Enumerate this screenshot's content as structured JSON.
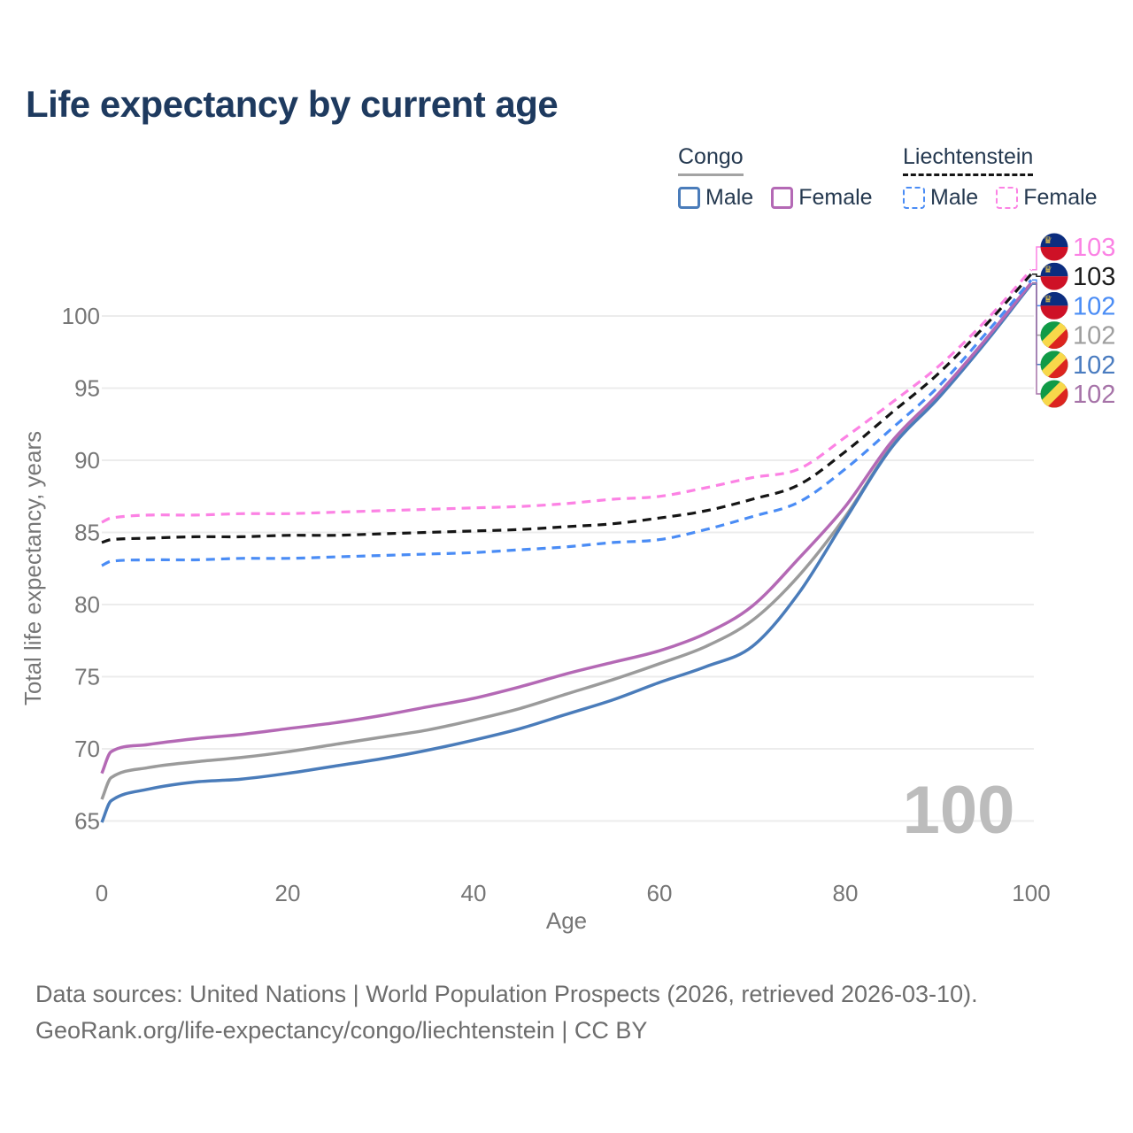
{
  "title": "Life expectancy by current age",
  "legend": {
    "groups": [
      {
        "label": "Congo",
        "underline": {
          "style": "solid",
          "color": "#a3a3a3"
        },
        "items": [
          {
            "label": "Male",
            "color": "#4a7cba",
            "dashed": false
          },
          {
            "label": "Female",
            "color": "#b469b5",
            "dashed": false
          }
        ]
      },
      {
        "label": "Liechtenstein",
        "underline": {
          "style": "dashed",
          "color": "#161616"
        },
        "items": [
          {
            "label": "Male",
            "color": "#4a8cf5",
            "dashed": true
          },
          {
            "label": "Female",
            "color": "#fc82e4",
            "dashed": true
          }
        ]
      }
    ]
  },
  "chart_data": {
    "type": "line",
    "title": "Life expectancy by current age",
    "xlabel": "Age",
    "ylabel": "Total life expectancy, years",
    "xlim": [
      0,
      100
    ],
    "ylim": [
      64,
      104
    ],
    "xticks": [
      0,
      20,
      40,
      60,
      80,
      100
    ],
    "yticks": [
      65,
      70,
      75,
      80,
      85,
      90,
      95,
      100
    ],
    "grid": "horizontal-only",
    "legend_position": "top-right",
    "watermark": "100",
    "x": [
      0,
      1,
      5,
      10,
      15,
      20,
      25,
      30,
      35,
      40,
      45,
      50,
      55,
      60,
      65,
      70,
      75,
      80,
      85,
      90,
      95,
      100
    ],
    "series": [
      {
        "key": "congo_both",
        "name": "Congo Both sexes",
        "color": "#9b9b9b",
        "dash": "solid",
        "values": [
          66.5,
          68.0,
          68.7,
          69.1,
          69.4,
          69.8,
          70.3,
          70.8,
          71.3,
          72.0,
          72.8,
          73.8,
          74.8,
          75.9,
          77.1,
          78.9,
          82.0,
          86.1,
          91.0,
          94.4,
          98.2,
          102.2
        ]
      },
      {
        "key": "congo_male",
        "name": "Congo Male",
        "color": "#4a7cba",
        "dash": "solid",
        "values": [
          64.9,
          66.4,
          67.2,
          67.7,
          67.9,
          68.3,
          68.8,
          69.3,
          69.9,
          70.6,
          71.4,
          72.4,
          73.4,
          74.6,
          75.7,
          77.1,
          80.8,
          85.9,
          90.9,
          94.3,
          98.1,
          102.2
        ]
      },
      {
        "key": "congo_female",
        "name": "Congo Female",
        "color": "#b469b5",
        "dash": "solid",
        "values": [
          68.3,
          69.8,
          70.3,
          70.7,
          71.0,
          71.4,
          71.8,
          72.3,
          72.9,
          73.5,
          74.3,
          75.2,
          76.0,
          76.8,
          78.0,
          79.9,
          83.2,
          86.8,
          91.3,
          94.6,
          98.3,
          102.3
        ]
      },
      {
        "key": "liech_male",
        "name": "Liechtenstein Male",
        "color": "#4a8cf5",
        "dash": "dashed",
        "values": [
          82.7,
          83.0,
          83.1,
          83.1,
          83.2,
          83.2,
          83.3,
          83.4,
          83.5,
          83.6,
          83.8,
          84.0,
          84.3,
          84.5,
          85.2,
          86.1,
          87.1,
          89.4,
          92.2,
          95.1,
          98.7,
          102.5
        ]
      },
      {
        "key": "liech_both",
        "name": "Liechtenstein Both sexes",
        "color": "#151515",
        "dash": "dashed",
        "values": [
          84.3,
          84.5,
          84.6,
          84.7,
          84.7,
          84.8,
          84.8,
          84.9,
          85.0,
          85.1,
          85.2,
          85.4,
          85.6,
          86.0,
          86.5,
          87.3,
          88.3,
          90.6,
          93.3,
          96.0,
          99.3,
          102.9
        ]
      },
      {
        "key": "liech_female",
        "name": "Liechtenstein Female",
        "color": "#fc82e4",
        "dash": "dashed",
        "values": [
          85.7,
          86.0,
          86.2,
          86.2,
          86.3,
          86.3,
          86.4,
          86.5,
          86.6,
          86.7,
          86.8,
          87.0,
          87.3,
          87.5,
          88.1,
          88.8,
          89.4,
          91.6,
          94.0,
          96.5,
          99.6,
          103.2
        ]
      }
    ],
    "end_labels": [
      {
        "series": "liech_female",
        "value": "103",
        "color": "#fb82e4",
        "flag": "liechtenstein"
      },
      {
        "series": "liech_both",
        "value": "103",
        "color": "#1c1c1c",
        "flag": "liechtenstein"
      },
      {
        "series": "liech_male",
        "value": "102",
        "color": "#4a8cf5",
        "flag": "liechtenstein"
      },
      {
        "series": "congo_both",
        "value": "102",
        "color": "#9e9e9e",
        "flag": "congo"
      },
      {
        "series": "congo_male",
        "value": "102",
        "color": "#4a7cc0",
        "flag": "congo"
      },
      {
        "series": "congo_female",
        "value": "102",
        "color": "#a673a8",
        "flag": "congo"
      }
    ]
  },
  "footer": {
    "line1": "Data sources: United Nations | World Population Prospects (2026, retrieved 2026-03-10).",
    "line2": "GeoRank.org/life-expectancy/congo/liechtenstein | CC BY"
  }
}
